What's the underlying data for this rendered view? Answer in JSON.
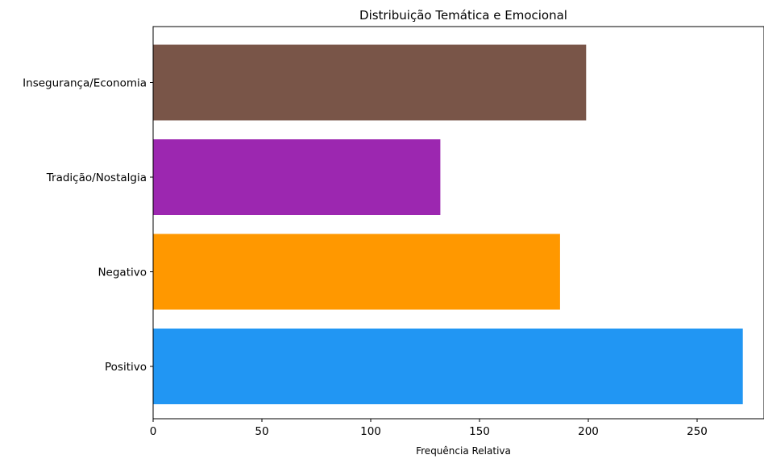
{
  "chart_data": {
    "type": "bar",
    "orientation": "horizontal",
    "title": "Distribuição Temática e Emocional",
    "xlabel": "Frequência Relativa",
    "ylabel": "",
    "categories": [
      "Positivo",
      "Negativo",
      "Tradição/Nostalgia",
      "Insegurança/Economia"
    ],
    "values": [
      271,
      187,
      132,
      199
    ],
    "colors": [
      "#2196f3",
      "#ff9800",
      "#9c27b0",
      "#795548"
    ],
    "xlim": [
      0,
      280
    ],
    "xticks": [
      0,
      50,
      100,
      150,
      200,
      250
    ],
    "grid": false,
    "legend": "none"
  }
}
